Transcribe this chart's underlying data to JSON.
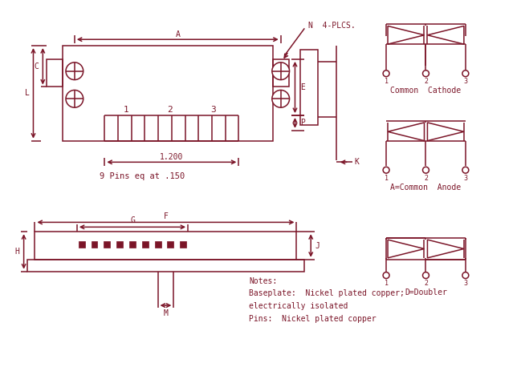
{
  "color": "#7B1528",
  "bg_color": "#FFFFFF",
  "notes": [
    "Notes:",
    "Baseplate:  Nickel plated copper;",
    "electrically isolated",
    "Pins:  Nickel plated copper"
  ]
}
